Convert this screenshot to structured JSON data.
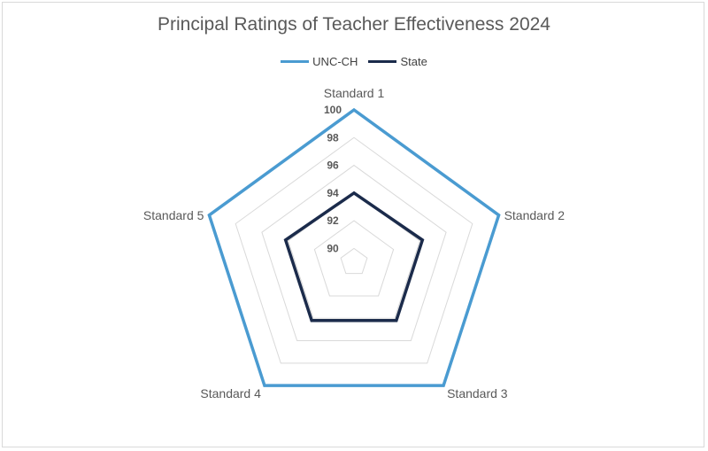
{
  "chart_data": {
    "type": "radar",
    "title": "Principal Ratings of Teacher Effectiveness 2024",
    "categories": [
      "Standard 1",
      "Standard 2",
      "Standard 3",
      "Standard 4",
      "Standard 5"
    ],
    "r_ticks": [
      "90",
      "92",
      "94",
      "96",
      "98",
      "100"
    ],
    "rlim": [
      89,
      100
    ],
    "grid": true,
    "legend": "top",
    "series": [
      {
        "name": "UNC-CH",
        "values": [
          100,
          100,
          100,
          100,
          100
        ],
        "color": "#4a9bd1"
      },
      {
        "name": "State",
        "values": [
          94,
          94.2,
          94.2,
          94.2,
          94.2
        ],
        "color": "#1b2b4b"
      }
    ]
  }
}
